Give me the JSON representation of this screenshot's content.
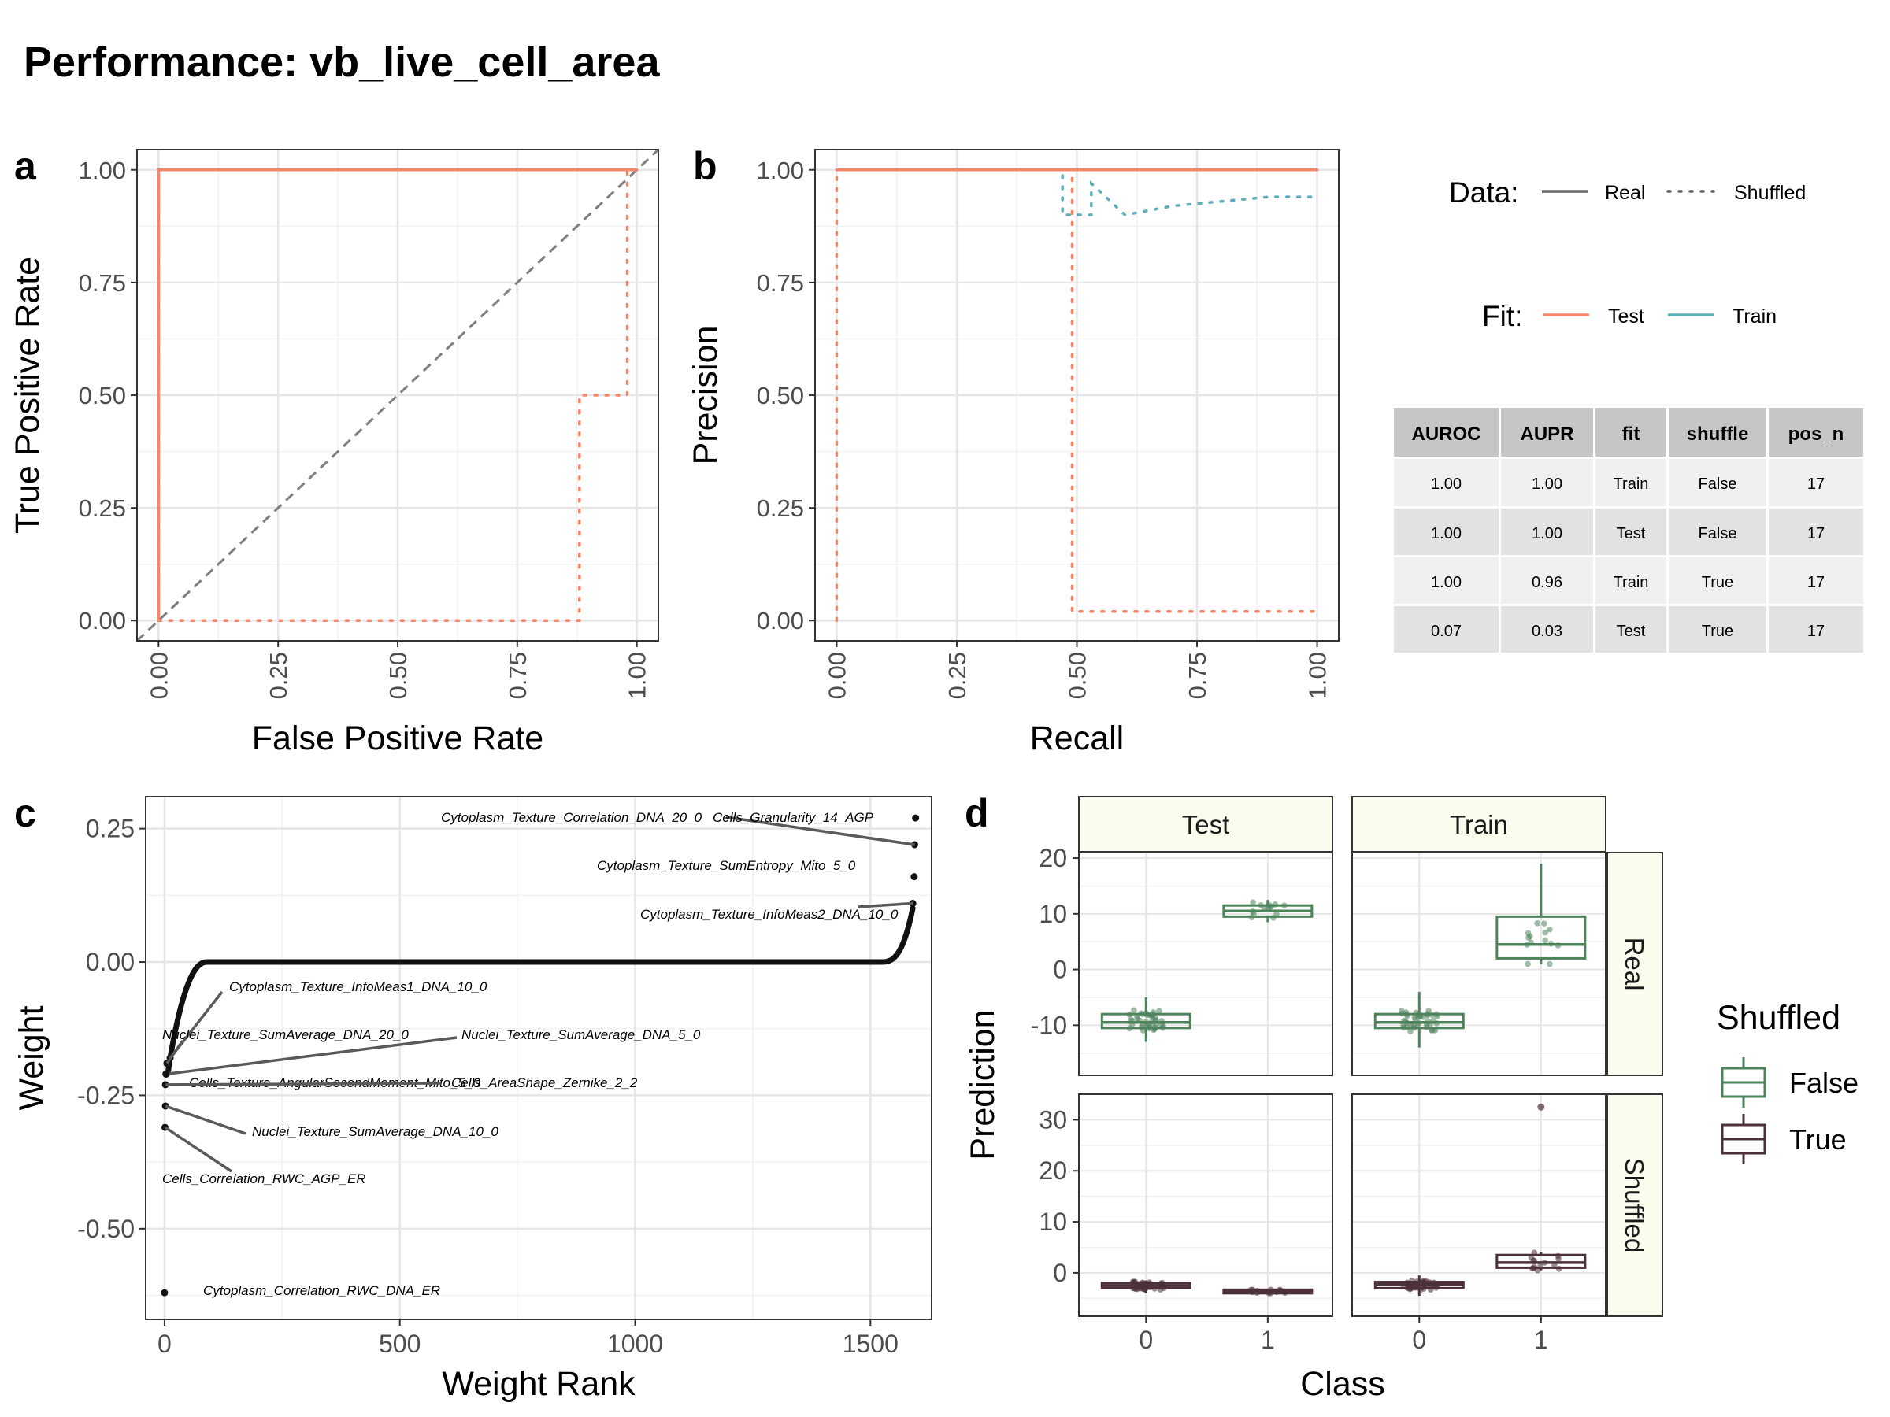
{
  "title": "Performance: vb_live_cell_area",
  "colors": {
    "test": "#F4866A",
    "train": "#5FADB9",
    "diag": "#7F7F7F",
    "panel_border": "#333333",
    "grid": "#E6E6E6",
    "false_box": "#4E845C",
    "true_box": "#4B3038",
    "strip_fill": "#FBFBEE",
    "table_header": "#C6C6C6",
    "table_odd": "#F0F0F0",
    "table_even": "#E2E2E2"
  },
  "legend": {
    "data_title": "Data:",
    "data_items": [
      "Real",
      "Shuffled"
    ],
    "fit_title": "Fit:",
    "fit_items": [
      "Test",
      "Train"
    ],
    "shuffled_title": "Shuffled",
    "shuffled_items": [
      "False",
      "True"
    ]
  },
  "metrics_table": {
    "headers": [
      "AUROC",
      "AUPR",
      "fit",
      "shuffle",
      "pos_n"
    ],
    "rows": [
      [
        "1.00",
        "1.00",
        "Train",
        "False",
        "17"
      ],
      [
        "1.00",
        "1.00",
        "Test",
        "False",
        "17"
      ],
      [
        "1.00",
        "0.96",
        "Train",
        "True",
        "17"
      ],
      [
        "0.07",
        "0.03",
        "Test",
        "True",
        "17"
      ]
    ]
  },
  "chart_data": [
    {
      "panel": "a",
      "type": "line",
      "xlabel": "False Positive Rate",
      "ylabel": "True Positive Rate",
      "xlim": [
        0,
        1
      ],
      "ylim": [
        0,
        1
      ],
      "ticks": [
        "0.00",
        "0.25",
        "0.50",
        "0.75",
        "1.00"
      ],
      "diagonal": true,
      "series": [
        {
          "fit": "Train",
          "data": "Real",
          "x": [
            0,
            0,
            1
          ],
          "y": [
            0,
            1,
            1
          ]
        },
        {
          "fit": "Test",
          "data": "Real",
          "x": [
            0,
            0,
            1
          ],
          "y": [
            0,
            1,
            1
          ]
        },
        {
          "fit": "Train",
          "data": "Shuffled",
          "x": [
            0,
            0,
            1
          ],
          "y": [
            0,
            1,
            1
          ]
        },
        {
          "fit": "Test",
          "data": "Shuffled",
          "x": [
            0,
            0.88,
            0.88,
            0.98,
            0.98,
            1
          ],
          "y": [
            0,
            0,
            0.5,
            0.5,
            1,
            1
          ]
        }
      ]
    },
    {
      "panel": "b",
      "type": "line",
      "xlabel": "Recall",
      "ylabel": "Precision",
      "xlim": [
        0,
        1
      ],
      "ylim": [
        0,
        1
      ],
      "ticks": [
        "0.00",
        "0.25",
        "0.50",
        "0.75",
        "1.00"
      ],
      "series": [
        {
          "fit": "Train",
          "data": "Real",
          "x": [
            0,
            1
          ],
          "y": [
            1,
            1
          ]
        },
        {
          "fit": "Test",
          "data": "Real",
          "x": [
            0,
            1
          ],
          "y": [
            1,
            1
          ]
        },
        {
          "fit": "Train",
          "data": "Shuffled",
          "x": [
            0,
            0.47,
            0.47,
            0.53,
            0.53,
            0.6,
            0.7,
            0.8,
            0.9,
            1.0
          ],
          "y": [
            1,
            1,
            0.9,
            0.9,
            0.97,
            0.9,
            0.92,
            0.93,
            0.94,
            0.94
          ]
        },
        {
          "fit": "Test",
          "data": "Shuffled",
          "x": [
            0,
            0,
            0.49,
            0.49,
            1
          ],
          "y": [
            0,
            1,
            1,
            0.02,
            0.02
          ]
        }
      ]
    },
    {
      "panel": "c",
      "type": "scatter",
      "xlabel": "Weight Rank",
      "ylabel": "Weight",
      "xlim": [
        -40,
        1630
      ],
      "ylim": [
        -0.67,
        0.31
      ],
      "xticks": [
        0,
        500,
        1000,
        1500
      ],
      "yticks": [
        0.25,
        0.0,
        -0.25,
        -0.5
      ],
      "ytick_labels": [
        "0.25",
        "0.00",
        "-0.25",
        "-0.50"
      ],
      "labels": [
        {
          "text": "Cytoplasm_Texture_Correlation_DNA_20_0",
          "rank": 1594,
          "weight": 0.22
        },
        {
          "text": "Cells_Granularity_14_AGP",
          "rank": 1596,
          "weight": 0.27
        },
        {
          "text": "Cytoplasm_Texture_SumEntropy_Mito_5_0",
          "rank": 1593,
          "weight": 0.16
        },
        {
          "text": "Cytoplasm_Texture_InfoMeas2_DNA_10_0",
          "rank": 1590,
          "weight": 0.11
        },
        {
          "text": "Cytoplasm_Texture_InfoMeas1_DNA_10_0",
          "rank": 12,
          "weight": -0.18
        },
        {
          "text": "Nuclei_Texture_SumAverage_DNA_20_0",
          "rank": 5,
          "weight": -0.19
        },
        {
          "text": "Nuclei_Texture_SumAverage_DNA_5_0",
          "rank": 4,
          "weight": -0.21
        },
        {
          "text": "Cells_Texture_AngularSecondMoment_Mito_5_0",
          "rank": 3,
          "weight": -0.21
        },
        {
          "text": "Cells_AreaShape_Zernike_2_2",
          "rank": 2,
          "weight": -0.23
        },
        {
          "text": "Nuclei_Texture_SumAverage_DNA_10_0",
          "rank": 2,
          "weight": -0.27
        },
        {
          "text": "Cells_Correlation_RWC_AGP_ER",
          "rank": 1,
          "weight": -0.31
        },
        {
          "text": "Cytoplasm_Correlation_RWC_DNA_ER",
          "rank": 0,
          "weight": -0.62
        }
      ]
    },
    {
      "panel": "d",
      "type": "box",
      "xlabel": "Class",
      "ylabel": "Prediction",
      "col_facets": [
        "Test",
        "Train"
      ],
      "row_facets": [
        "Real",
        "Shuffled"
      ],
      "x_categories": [
        "0",
        "1"
      ],
      "real_ylim": [
        -19,
        21
      ],
      "real_yticks": [
        20,
        10,
        0,
        -10
      ],
      "real_ytick_labels": [
        "20",
        "10",
        "0",
        "-10"
      ],
      "shuffled_ylim": [
        -8.5,
        35
      ],
      "shuffled_yticks": [
        30,
        20,
        10,
        0
      ],
      "shuffled_ytick_labels": [
        "30",
        "20",
        "10",
        "0"
      ],
      "boxes": [
        {
          "row": "Real",
          "col": "Test",
          "class": "0",
          "q1": -10.5,
          "median": -9.5,
          "q3": -8,
          "whisker_low": -13,
          "whisker_high": -5
        },
        {
          "row": "Real",
          "col": "Test",
          "class": "1",
          "q1": 9.5,
          "median": 10.5,
          "q3": 11.5,
          "whisker_low": 8.5,
          "whisker_high": 12.5
        },
        {
          "row": "Real",
          "col": "Train",
          "class": "0",
          "q1": -10.5,
          "median": -9.5,
          "q3": -8,
          "whisker_low": -14,
          "whisker_high": -4
        },
        {
          "row": "Real",
          "col": "Train",
          "class": "1",
          "q1": 2,
          "median": 4.5,
          "q3": 9.5,
          "whisker_low": 1,
          "whisker_high": 19
        },
        {
          "row": "Shuffled",
          "col": "Test",
          "class": "0",
          "q1": -3,
          "median": -2.5,
          "q3": -2,
          "whisker_low": -4,
          "whisker_high": -1.5
        },
        {
          "row": "Shuffled",
          "col": "Test",
          "class": "1",
          "q1": -4,
          "median": -3.6,
          "q3": -3.3,
          "whisker_low": -4,
          "whisker_high": -3.3
        },
        {
          "row": "Shuffled",
          "col": "Train",
          "class": "0",
          "q1": -3,
          "median": -2.3,
          "q3": -1.8,
          "whisker_low": -4.5,
          "whisker_high": -0.5
        },
        {
          "row": "Shuffled",
          "col": "Train",
          "class": "1",
          "q1": 1,
          "median": 2,
          "q3": 3.5,
          "whisker_low": 0.5,
          "whisker_high": 4
        }
      ],
      "outliers": [
        {
          "row": "Shuffled",
          "col": "Train",
          "class": "1",
          "value": 32.5
        }
      ]
    }
  ],
  "panel_letters": [
    "a",
    "b",
    "c",
    "d"
  ]
}
